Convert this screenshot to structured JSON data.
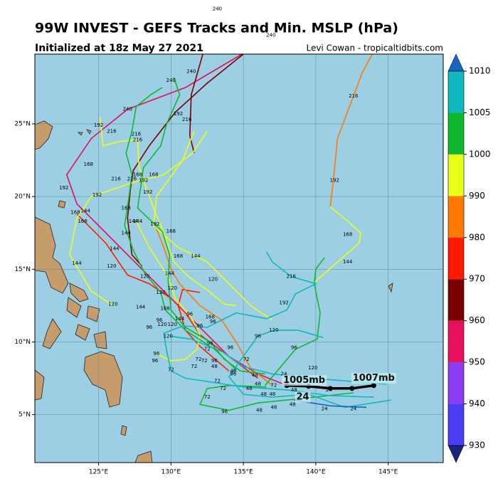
{
  "chart_data": {
    "type": "track-map",
    "title": "99W INVEST - GEFS Tracks and Min. MSLP (hPa)",
    "subtitle": "Initialized at 18z May 27 2021",
    "credit": "Levi Cowan - tropicaltidbits.com",
    "xlim": [
      120.6,
      148.8
    ],
    "ylim": [
      1.7,
      29.8
    ],
    "xticks": [
      {
        "value": 125,
        "label": "125°E"
      },
      {
        "value": 130,
        "label": "130°E"
      },
      {
        "value": 135,
        "label": "135°E"
      },
      {
        "value": 140,
        "label": "140°E"
      },
      {
        "value": 145,
        "label": "145°E"
      }
    ],
    "yticks": [
      {
        "value": 5,
        "label": "5°N"
      },
      {
        "value": 10,
        "label": "10°N"
      },
      {
        "value": 15,
        "label": "15°N"
      },
      {
        "value": 20,
        "label": "20°N"
      },
      {
        "value": 25,
        "label": "25°N"
      }
    ],
    "grid": true,
    "ocean_color": "#9ccfe4",
    "colorbar": {
      "levels": [
        930,
        940,
        950,
        960,
        970,
        980,
        990,
        1000,
        1005,
        1010
      ],
      "colors": [
        "#4a3cf0",
        "#8a3cf0",
        "#e8105c",
        "#780000",
        "#ff1a00",
        "#ff7a00",
        "#e8ff1a",
        "#10b830",
        "#10b8c0"
      ],
      "under_color": "#1a237e",
      "over_color": "#1565c0"
    },
    "series": [
      {
        "color": "#e0105c",
        "x": [
          134.9,
          131,
          127,
          124.5,
          122.8,
          123.5,
          125,
          126.5,
          128,
          129.5,
          131,
          132.5,
          134,
          136,
          138
        ],
        "values": [
          29.8,
          27.5,
          26,
          24,
          21.5,
          19.5,
          18,
          16.5,
          15,
          13.5,
          12,
          10.5,
          9,
          7.8,
          7
        ]
      },
      {
        "color": "#780000",
        "x": [
          132.2,
          131.4,
          131.3,
          131.6
        ],
        "values": [
          29.8,
          27,
          24.2,
          23
        ]
      },
      {
        "color": "#780000",
        "x": [
          135,
          132.5,
          130.3,
          128.5,
          127.4,
          127.2,
          127,
          127.3,
          128
        ],
        "values": [
          29.8,
          27.8,
          25.8,
          23.5,
          21.8,
          20.5,
          18.5,
          16,
          15.2
        ]
      },
      {
        "color": "#ff1a00",
        "x": [
          136,
          134,
          132,
          131,
          130,
          128.5,
          127,
          125.5,
          124.5,
          123.5
        ],
        "values": [
          7.5,
          9,
          10.5,
          12,
          13,
          14,
          14.6,
          16.8,
          17.8,
          18.8
        ]
      },
      {
        "color": "#ff1a00",
        "x": [
          134,
          132,
          131,
          130.5,
          130.8,
          132
        ],
        "values": [
          8,
          9.7,
          10.8,
          12.5,
          13.6,
          13.4
        ]
      },
      {
        "color": "#ff7a00",
        "x": [
          141,
          141.2,
          141.5,
          142.6,
          143.2,
          143.9
        ],
        "values": [
          19.3,
          21,
          24,
          26.9,
          28.5,
          29.8
        ]
      },
      {
        "color": "#ff7a00",
        "x": [
          137,
          135.5,
          134.5,
          133.5,
          132,
          130.6,
          130,
          129.5,
          128.8
        ],
        "values": [
          7,
          8.2,
          10,
          11.5,
          12.5,
          14,
          15,
          16.5,
          18.3
        ]
      },
      {
        "color": "#e8ff1a",
        "x": [
          139.8,
          141.5,
          143,
          143.1,
          142.2,
          141
        ],
        "values": [
          14,
          15.5,
          16.8,
          17.5,
          18.3,
          19.3
        ]
      },
      {
        "color": "#e8ff1a",
        "x": [
          126,
          124.5,
          123,
          123.5,
          124.5,
          127.5,
          129.5,
          131.5,
          132.5
        ],
        "values": [
          12.5,
          13.5,
          16,
          18.5,
          20,
          21,
          21.5,
          23,
          24.5
        ]
      },
      {
        "color": "#e8ff1a",
        "x": [
          125.1,
          125.3,
          126.5,
          127.7,
          127.8,
          128.4,
          128.8,
          129.5,
          130.2,
          131.2,
          132.6,
          133.7,
          134.5
        ],
        "values": [
          25.5,
          23.5,
          23.8,
          23.9,
          22,
          20.3,
          19.2,
          17.5,
          15.5,
          14.5,
          13.5,
          12.6,
          12.5
        ]
      },
      {
        "color": "#e8ff1a",
        "x": [
          131.6,
          130.8,
          129,
          128.8,
          130.5,
          132.5,
          134,
          135.5,
          137
        ],
        "values": [
          24.5,
          22.5,
          20,
          18,
          16.5,
          15.5,
          14,
          12.5,
          11.5
        ]
      },
      {
        "color": "#e8ff1a",
        "x": [
          127.6,
          128.5,
          129.8,
          130.3,
          131.5,
          132,
          131.8,
          131,
          130,
          129
        ],
        "values": [
          18.3,
          16.5,
          14.5,
          13,
          11.5,
          10.5,
          9.5,
          8.8,
          8.7,
          9.2
        ]
      },
      {
        "color": "#10b830",
        "x": [
          130.2,
          130.6,
          129.7,
          129.3,
          128.1,
          127.7,
          129.4,
          129.9,
          129.8,
          130,
          131,
          132.7,
          133.7,
          134.8,
          136.5
        ],
        "values": [
          28.2,
          27,
          25,
          23.5,
          22,
          19.2,
          17.6,
          16,
          14.2,
          12.2,
          11,
          10,
          8.8,
          8,
          7.8
        ]
      },
      {
        "color": "#10b830",
        "x": [
          136.5,
          138.6,
          140.1,
          140.3,
          139.9,
          140,
          140.6
        ],
        "values": [
          7,
          9.5,
          10.2,
          12,
          14,
          15,
          15.8
        ]
      },
      {
        "color": "#10b830",
        "x": [
          142.6,
          139,
          136,
          134,
          132,
          132.5,
          134,
          136.6
        ],
        "values": [
          6.5,
          6.1,
          5.8,
          5.3,
          5.7,
          6.8,
          7,
          6.9
        ]
      },
      {
        "color": "#10b830",
        "x": [
          129.4,
          128.6,
          127.6,
          127.3,
          126.9,
          127.3,
          127.1,
          126.8,
          127.4,
          128.2,
          129.3,
          129.6,
          131,
          133,
          134.5
        ],
        "values": [
          27.5,
          27,
          26.2,
          24.5,
          23,
          21.5,
          20,
          18,
          16.3,
          14.7,
          13.4,
          12.2,
          10.8,
          9.5,
          8.1
        ]
      },
      {
        "color": "#10b8c0",
        "x": [
          144,
          141,
          138,
          135,
          131,
          130,
          129.7,
          129.5,
          130.8,
          132.5,
          134.5,
          136.6,
          138,
          138.6,
          140,
          138.3,
          137,
          136.6
        ],
        "values": [
          6.2,
          6.3,
          6.7,
          6.9,
          7.5,
          8,
          9.4,
          10.6,
          11.1,
          11,
          12,
          11.6,
          12.2,
          13.3,
          14,
          14.5,
          15.5,
          16.2
        ]
      },
      {
        "color": "#10b8c0",
        "x": [
          144.9,
          141,
          137,
          135,
          133.6,
          131.4,
          129.9
        ],
        "values": [
          7.1,
          7.4,
          7.8,
          8.3,
          9.3,
          10.2,
          10.4
        ]
      },
      {
        "color": "#10b8c0",
        "x": [
          145.2,
          142,
          139.5,
          137,
          135,
          134,
          134.7,
          136,
          137.1,
          138.8,
          140.5
        ],
        "values": [
          6,
          5.5,
          6.4,
          6.2,
          6.4,
          7.6,
          8.6,
          10.4,
          10.8,
          10.8,
          10.3
        ]
      },
      {
        "color": "#1565c0",
        "x": [
          143.5,
          141,
          138.5
        ],
        "values": [
          5.5,
          5.6,
          6
        ]
      }
    ],
    "mean_track": {
      "color": "#000000",
      "x": [
        144,
        142.5,
        141,
        139.5,
        138
      ],
      "values": [
        7,
        6.8,
        6.8,
        6.95,
        7
      ]
    },
    "mean_labels": [
      {
        "text": "1005mb",
        "x": 139.2,
        "y": 7.35
      },
      {
        "text": "1007mb",
        "x": 144.0,
        "y": 7.5
      },
      {
        "text": "24",
        "x": 139.1,
        "y": 6.2
      }
    ],
    "annotations": [
      {
        "text": "240",
        "x": 133.2,
        "y": 32.9
      },
      {
        "text": "240",
        "x": 136.9,
        "y": 31.1
      },
      {
        "text": "240",
        "x": 131.4,
        "y": 28.6
      },
      {
        "text": "240",
        "x": 130.0,
        "y": 28.0
      },
      {
        "text": "240",
        "x": 127.0,
        "y": 26.0
      },
      {
        "text": "216",
        "x": 131.1,
        "y": 25.3
      },
      {
        "text": "192",
        "x": 130.5,
        "y": 25.7
      },
      {
        "text": "192",
        "x": 125.0,
        "y": 24.9
      },
      {
        "text": "216",
        "x": 125.9,
        "y": 24.5
      },
      {
        "text": "216",
        "x": 127.6,
        "y": 24.3
      },
      {
        "text": "216",
        "x": 127.7,
        "y": 23.9
      },
      {
        "text": "168",
        "x": 124.3,
        "y": 22.2
      },
      {
        "text": "216",
        "x": 126.2,
        "y": 21.2
      },
      {
        "text": "216",
        "x": 127.3,
        "y": 21.2
      },
      {
        "text": "168",
        "x": 127.7,
        "y": 21.5
      },
      {
        "text": "168",
        "x": 128.8,
        "y": 21.5
      },
      {
        "text": "192",
        "x": 128.1,
        "y": 21.1
      },
      {
        "text": "192",
        "x": 122.6,
        "y": 20.6
      },
      {
        "text": "192",
        "x": 124.9,
        "y": 20.1
      },
      {
        "text": "192",
        "x": 128.4,
        "y": 20.3
      },
      {
        "text": "168",
        "x": 126.9,
        "y": 19.2
      },
      {
        "text": "168",
        "x": 123.4,
        "y": 18.9
      },
      {
        "text": "144",
        "x": 124.1,
        "y": 19.0
      },
      {
        "text": "168",
        "x": 123.9,
        "y": 18.3
      },
      {
        "text": "144",
        "x": 127.4,
        "y": 18.3
      },
      {
        "text": "144",
        "x": 127.7,
        "y": 18.3
      },
      {
        "text": "192",
        "x": 128.9,
        "y": 18.1
      },
      {
        "text": "168",
        "x": 130.0,
        "y": 17.6
      },
      {
        "text": "144",
        "x": 126.9,
        "y": 17.5
      },
      {
        "text": "144",
        "x": 126.1,
        "y": 16.4
      },
      {
        "text": "168",
        "x": 130.5,
        "y": 15.9
      },
      {
        "text": "144",
        "x": 131.7,
        "y": 15.9
      },
      {
        "text": "144",
        "x": 123.5,
        "y": 15.4
      },
      {
        "text": "120",
        "x": 125.9,
        "y": 15.2
      },
      {
        "text": "144",
        "x": 129.9,
        "y": 14.7
      },
      {
        "text": "120",
        "x": 128.2,
        "y": 14.5
      },
      {
        "text": "120",
        "x": 132.9,
        "y": 14.3
      },
      {
        "text": "216",
        "x": 138.3,
        "y": 14.5
      },
      {
        "text": "120",
        "x": 130.1,
        "y": 13.7
      },
      {
        "text": "120",
        "x": 129.3,
        "y": 13.4
      },
      {
        "text": "192",
        "x": 137.8,
        "y": 12.7
      },
      {
        "text": "120",
        "x": 126.0,
        "y": 12.6
      },
      {
        "text": "144",
        "x": 127.9,
        "y": 12.4
      },
      {
        "text": "168",
        "x": 129.6,
        "y": 12.3
      },
      {
        "text": "96",
        "x": 131.3,
        "y": 11.9
      },
      {
        "text": "168",
        "x": 132.7,
        "y": 11.7
      },
      {
        "text": "96",
        "x": 132.9,
        "y": 11.4
      },
      {
        "text": "144",
        "x": 130.6,
        "y": 11.6
      },
      {
        "text": "96",
        "x": 129.2,
        "y": 11.5
      },
      {
        "text": "120",
        "x": 129.4,
        "y": 11.2
      },
      {
        "text": "120",
        "x": 130.1,
        "y": 11.2
      },
      {
        "text": "96",
        "x": 128.5,
        "y": 11.0
      },
      {
        "text": "96",
        "x": 132.0,
        "y": 11.1
      },
      {
        "text": "120",
        "x": 137.1,
        "y": 10.8
      },
      {
        "text": "96",
        "x": 136.0,
        "y": 10.4
      },
      {
        "text": "120",
        "x": 129.8,
        "y": 10.4
      },
      {
        "text": "96",
        "x": 132.7,
        "y": 9.9
      },
      {
        "text": "96",
        "x": 134.1,
        "y": 9.6
      },
      {
        "text": "96",
        "x": 138.5,
        "y": 9.6
      },
      {
        "text": "72",
        "x": 132.5,
        "y": 9.5
      },
      {
        "text": "96",
        "x": 129.0,
        "y": 9.2
      },
      {
        "text": "72",
        "x": 135.2,
        "y": 8.8
      },
      {
        "text": "96",
        "x": 128.9,
        "y": 8.7
      },
      {
        "text": "72",
        "x": 131.9,
        "y": 8.8
      },
      {
        "text": "72",
        "x": 132.3,
        "y": 8.7
      },
      {
        "text": "96",
        "x": 133.0,
        "y": 8.7
      },
      {
        "text": "48",
        "x": 133.0,
        "y": 8.3
      },
      {
        "text": "72",
        "x": 131.6,
        "y": 8.3
      },
      {
        "text": "72",
        "x": 130.0,
        "y": 8.1
      },
      {
        "text": "120",
        "x": 139.8,
        "y": 8.2
      },
      {
        "text": "24",
        "x": 137.8,
        "y": 7.8
      },
      {
        "text": "48",
        "x": 135.8,
        "y": 7.7
      },
      {
        "text": "48",
        "x": 134.3,
        "y": 8.0
      },
      {
        "text": "96",
        "x": 134.3,
        "y": 7.8
      },
      {
        "text": "72",
        "x": 137.1,
        "y": 7.0
      },
      {
        "text": "72",
        "x": 133.2,
        "y": 7.3
      },
      {
        "text": "72",
        "x": 133.6,
        "y": 6.8
      },
      {
        "text": "48",
        "x": 135.4,
        "y": 6.8
      },
      {
        "text": "48",
        "x": 136.0,
        "y": 7.1
      },
      {
        "text": "48",
        "x": 136.4,
        "y": 6.4
      },
      {
        "text": "48",
        "x": 137.0,
        "y": 6.4
      },
      {
        "text": "48",
        "x": 138.5,
        "y": 6.7
      },
      {
        "text": "48",
        "x": 138.4,
        "y": 5.7
      },
      {
        "text": "48",
        "x": 137.1,
        "y": 5.5
      },
      {
        "text": "48",
        "x": 136.1,
        "y": 5.3
      },
      {
        "text": "72",
        "x": 132.5,
        "y": 6.2
      },
      {
        "text": "96",
        "x": 133.7,
        "y": 5.2
      },
      {
        "text": "24",
        "x": 140.6,
        "y": 5.4
      },
      {
        "text": "24",
        "x": 142.6,
        "y": 5.4
      },
      {
        "text": "24",
        "x": 140.9,
        "y": 6.7
      },
      {
        "text": "216",
        "x": 142.6,
        "y": 26.9
      },
      {
        "text": "192",
        "x": 141.3,
        "y": 21.1
      },
      {
        "text": "168",
        "x": 142.2,
        "y": 17.4
      },
      {
        "text": "144",
        "x": 142.2,
        "y": 15.5
      }
    ]
  }
}
